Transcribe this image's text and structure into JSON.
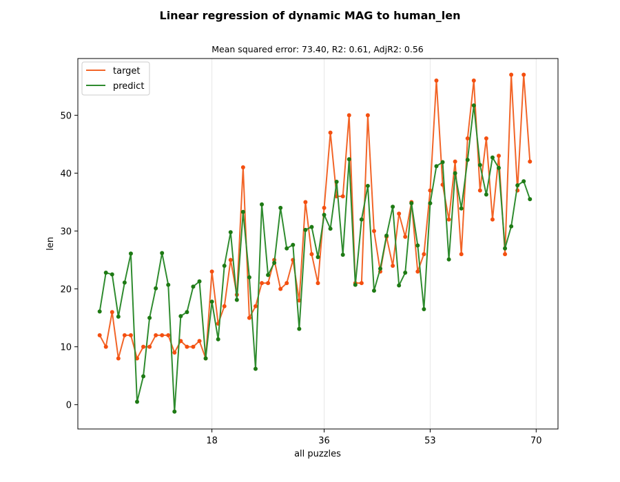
{
  "figure": {
    "suptitle": "Linear regression of dynamic MAG to human_len",
    "subtitle": "Mean squared error: 73.40, R2: 0.61, AdjR2: 0.56"
  },
  "chart_data": {
    "type": "line",
    "xlabel": "all puzzles",
    "ylabel": "len",
    "xlim": [
      -3.5,
      73.5
    ],
    "ylim": [
      -4.2,
      59.8
    ],
    "xticks": [
      18,
      36,
      53,
      70
    ],
    "yticks": [
      0,
      10,
      20,
      30,
      40,
      50
    ],
    "grid": "vertical lines at x ticks",
    "legend_position": "top-left",
    "x": [
      0,
      1,
      2,
      3,
      4,
      5,
      6,
      7,
      8,
      9,
      10,
      11,
      12,
      13,
      14,
      15,
      16,
      17,
      18,
      19,
      20,
      21,
      22,
      23,
      24,
      25,
      26,
      27,
      28,
      29,
      30,
      31,
      32,
      33,
      34,
      35,
      36,
      37,
      38,
      39,
      40,
      41,
      42,
      43,
      44,
      45,
      46,
      47,
      48,
      49,
      50,
      51,
      52,
      53,
      54,
      55,
      56,
      57,
      58,
      59,
      60,
      61,
      62,
      63,
      64,
      65,
      66,
      67,
      68,
      69
    ],
    "series": [
      {
        "name": "target",
        "color": "#f26427",
        "marker_color": "#f44f10",
        "values": [
          12,
          10,
          16,
          8,
          12,
          12,
          8,
          10,
          10,
          12,
          12,
          12,
          9,
          11,
          10,
          10,
          11,
          8,
          23,
          14,
          17,
          25,
          19,
          41,
          15,
          17,
          21,
          21,
          25,
          20,
          21,
          25,
          18,
          35,
          26,
          21,
          34,
          47,
          36,
          36,
          50,
          21,
          21,
          50,
          30,
          23,
          29,
          24,
          33,
          29,
          35,
          23,
          26,
          37,
          56,
          38,
          32,
          42,
          26,
          46,
          56,
          37,
          46,
          32,
          43,
          26,
          57,
          37,
          57,
          42
        ]
      },
      {
        "name": "predict",
        "color": "#2e8b2e",
        "marker_color": "#1e7a14",
        "values": [
          16.1,
          22.8,
          22.5,
          15.2,
          21.1,
          26.1,
          0.5,
          4.9,
          15.0,
          20.1,
          26.2,
          20.7,
          -1.2,
          15.3,
          16.0,
          20.4,
          21.3,
          8.0,
          17.8,
          11.3,
          24.0,
          29.8,
          18.1,
          33.3,
          22.0,
          6.2,
          34.6,
          22.4,
          24.5,
          34.0,
          27.0,
          27.6,
          13.1,
          30.2,
          30.7,
          25.5,
          32.8,
          30.4,
          38.5,
          25.9,
          42.4,
          20.7,
          32.0,
          37.8,
          19.7,
          23.5,
          29.2,
          34.2,
          20.6,
          22.8,
          34.8,
          27.5,
          16.5,
          34.8,
          41.2,
          41.9,
          25.1,
          40.0,
          33.9,
          42.3,
          51.7,
          41.4,
          36.3,
          42.7,
          40.9,
          27.0,
          30.8,
          37.9,
          38.6,
          35.5
        ]
      }
    ]
  }
}
